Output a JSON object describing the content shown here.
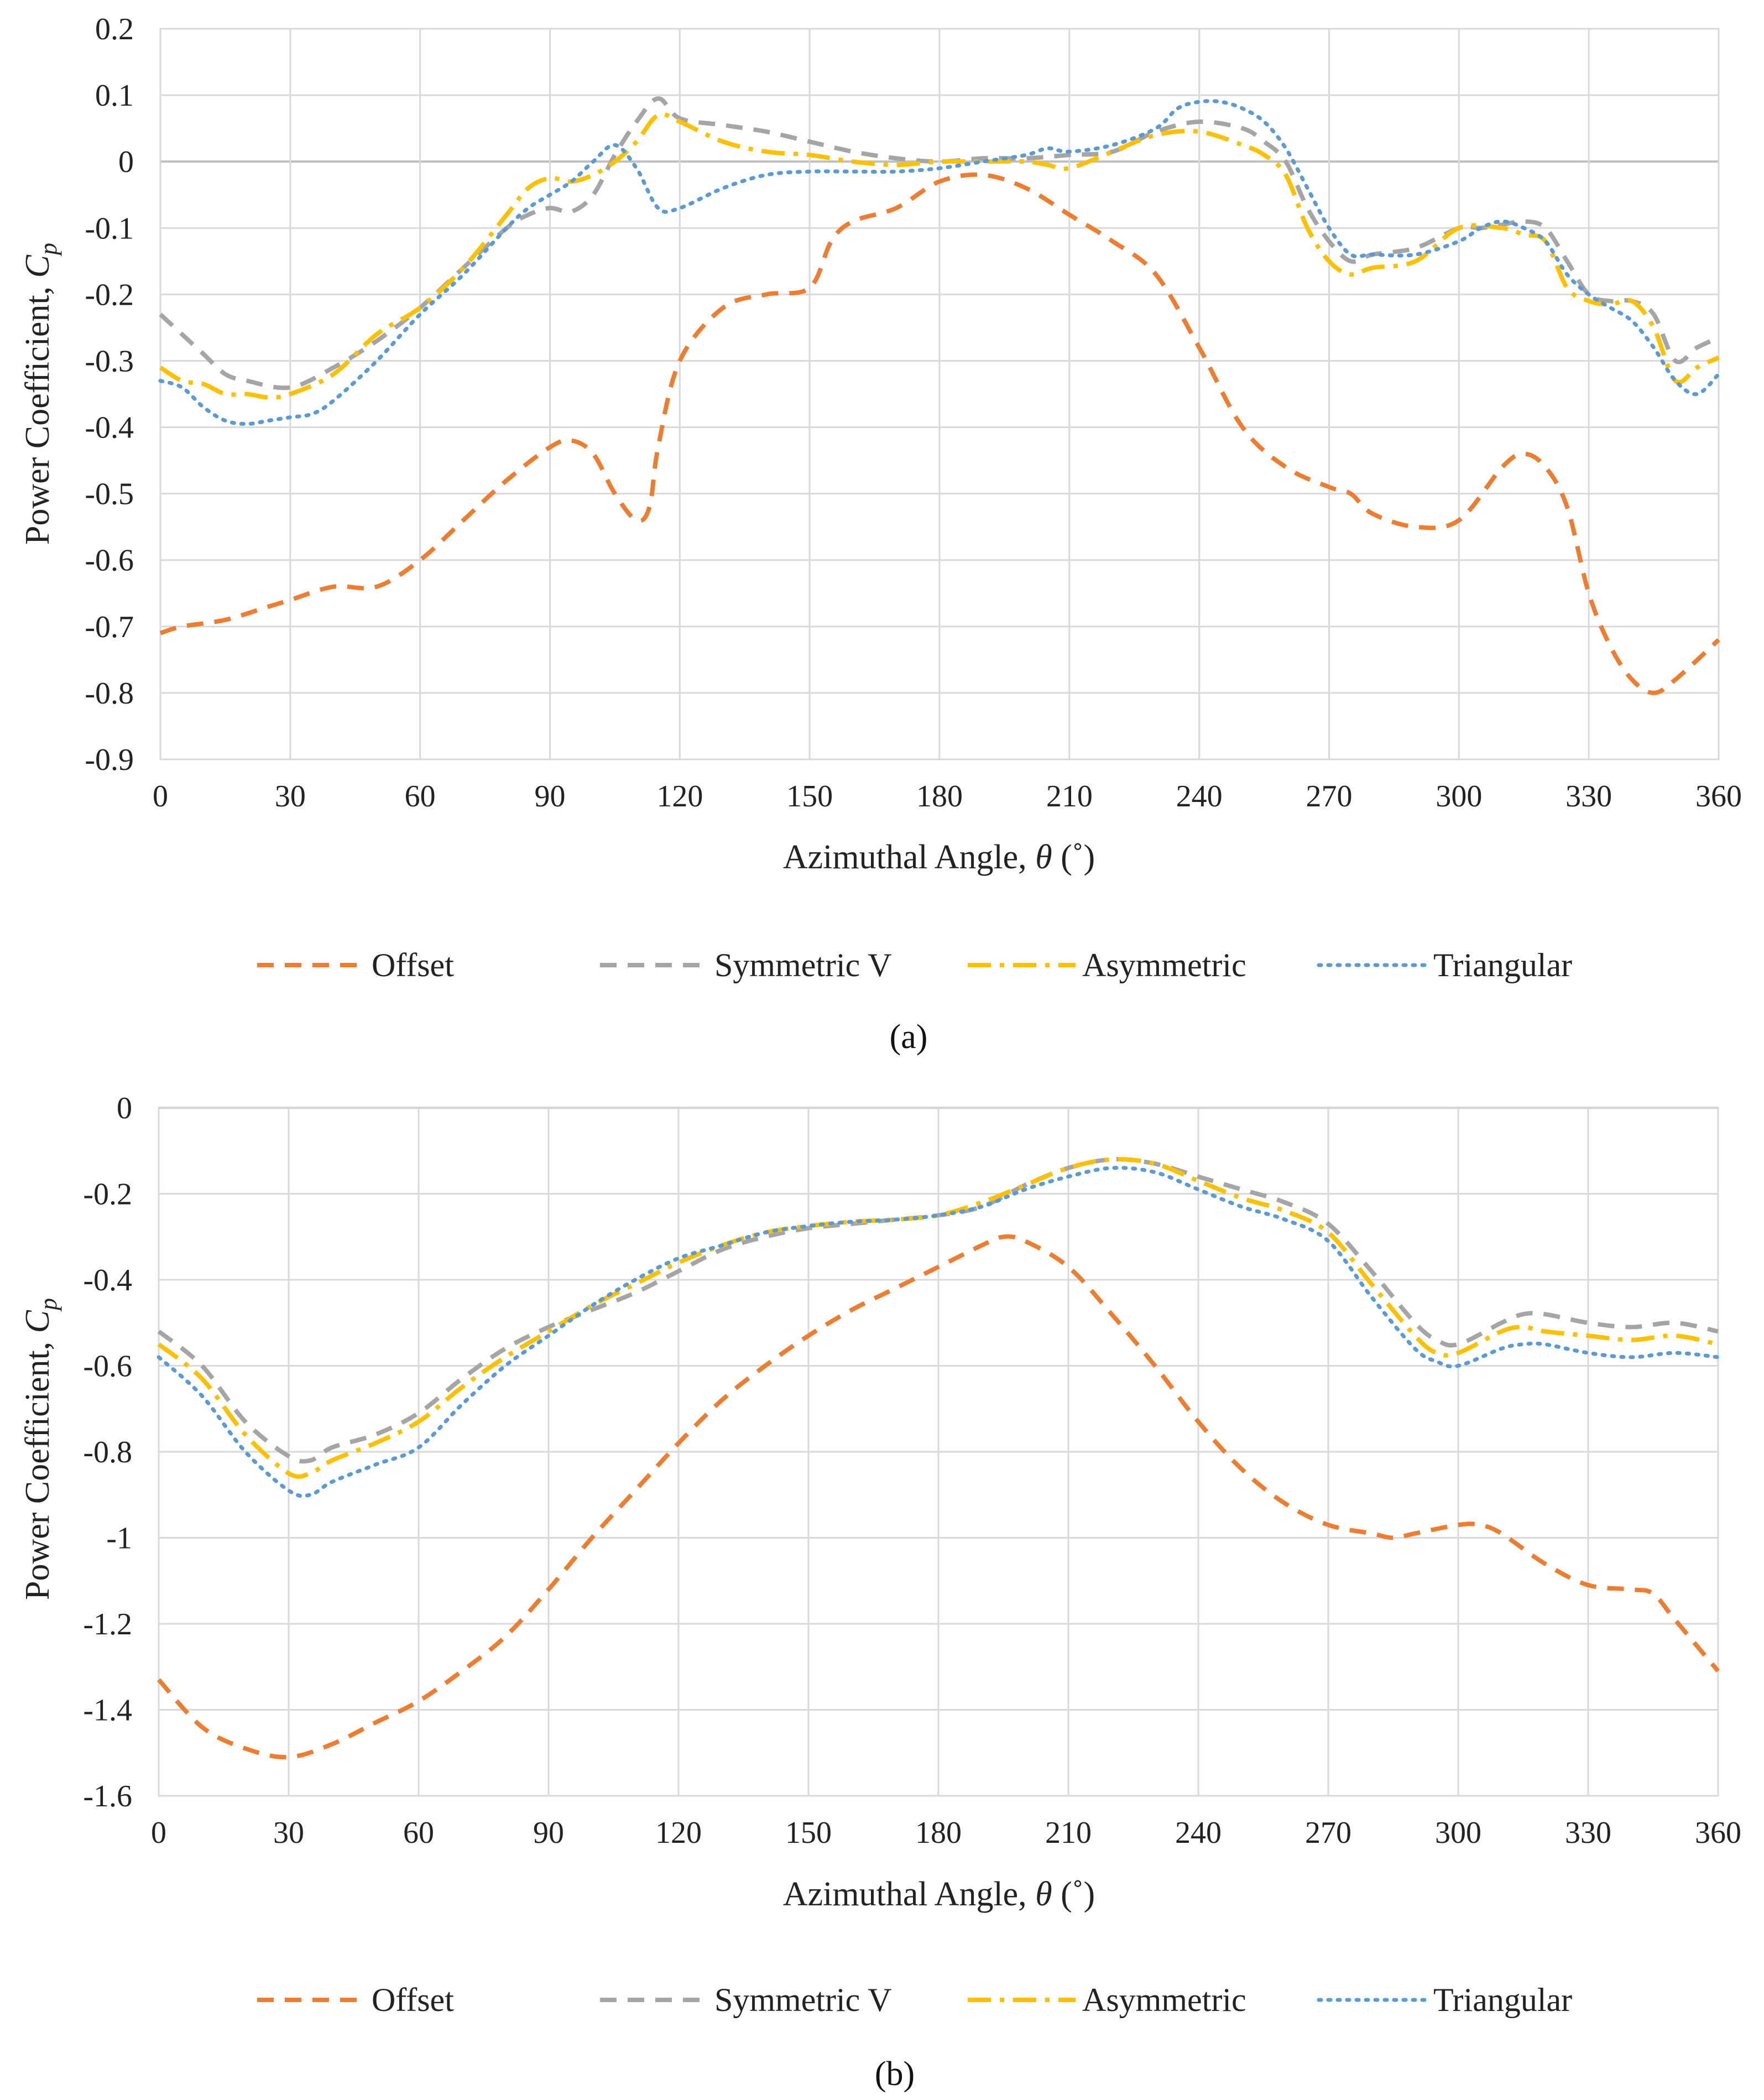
{
  "chart_data": [
    {
      "type": "line",
      "caption": "(a)",
      "xlabel_prefix": "Azimuthal Angle, ",
      "xlabel_symbol": "θ",
      "xlabel_suffix": " (˚)",
      "ylabel_prefix": "Power Coefficient, ",
      "ylabel_symbol": "C",
      "ylabel_sub": "p",
      "xlim": [
        0,
        360
      ],
      "ylim": [
        -0.9,
        0.2
      ],
      "xticks": [
        0,
        30,
        60,
        90,
        120,
        150,
        180,
        210,
        240,
        270,
        300,
        330,
        360
      ],
      "yticks": [
        0.2,
        0.1,
        0,
        -0.1,
        -0.2,
        -0.3,
        -0.4,
        -0.5,
        -0.6,
        -0.7,
        -0.8,
        -0.9
      ],
      "xtick_labels": [
        "0",
        "30",
        "60",
        "90",
        "120",
        "150",
        "180",
        "210",
        "240",
        "270",
        "300",
        "330",
        "360"
      ],
      "ytick_labels": [
        "0.2",
        "0.1",
        "0",
        "-0.1",
        "-0.2",
        "-0.3",
        "-0.4",
        "-0.5",
        "-0.6",
        "-0.7",
        "-0.8",
        "-0.9"
      ],
      "grid": true,
      "legend_position": "bottom",
      "series": [
        {
          "name": "Offset",
          "color": "#ED7D31",
          "style": "dash",
          "x": [
            0,
            5,
            15,
            25,
            30,
            40,
            50,
            60,
            70,
            80,
            90,
            95,
            100,
            105,
            110,
            113,
            115,
            120,
            130,
            140,
            150,
            155,
            160,
            170,
            180,
            190,
            200,
            210,
            220,
            230,
            240,
            250,
            260,
            270,
            275,
            280,
            290,
            300,
            310,
            315,
            320,
            325,
            330,
            335,
            340,
            345,
            350,
            360
          ],
          "y": [
            -0.71,
            -0.7,
            -0.69,
            -0.67,
            -0.66,
            -0.64,
            -0.64,
            -0.6,
            -0.54,
            -0.48,
            -0.43,
            -0.42,
            -0.44,
            -0.5,
            -0.54,
            -0.52,
            -0.43,
            -0.3,
            -0.22,
            -0.2,
            -0.19,
            -0.12,
            -0.09,
            -0.07,
            -0.03,
            -0.02,
            -0.04,
            -0.08,
            -0.12,
            -0.17,
            -0.28,
            -0.4,
            -0.46,
            -0.49,
            -0.5,
            -0.53,
            -0.55,
            -0.54,
            -0.46,
            -0.44,
            -0.46,
            -0.52,
            -0.65,
            -0.73,
            -0.78,
            -0.8,
            -0.78,
            -0.72
          ]
        },
        {
          "name": "Symmetric V",
          "color": "#A5A5A5",
          "style": "dash",
          "x": [
            0,
            5,
            10,
            15,
            20,
            30,
            40,
            50,
            60,
            70,
            80,
            85,
            90,
            95,
            100,
            105,
            110,
            115,
            120,
            130,
            140,
            150,
            160,
            170,
            180,
            190,
            200,
            210,
            220,
            230,
            240,
            250,
            255,
            260,
            265,
            270,
            275,
            280,
            290,
            300,
            305,
            310,
            315,
            320,
            325,
            330,
            335,
            340,
            345,
            350,
            355,
            360
          ],
          "y": [
            -0.23,
            -0.26,
            -0.29,
            -0.32,
            -0.33,
            -0.34,
            -0.31,
            -0.27,
            -0.22,
            -0.16,
            -0.1,
            -0.08,
            -0.07,
            -0.075,
            -0.05,
            0.01,
            0.06,
            0.095,
            0.065,
            0.055,
            0.045,
            0.03,
            0.015,
            0.005,
            0.0,
            0.005,
            0.005,
            0.01,
            0.015,
            0.045,
            0.06,
            0.05,
            0.03,
            0.0,
            -0.07,
            -0.12,
            -0.15,
            -0.14,
            -0.13,
            -0.1,
            -0.1,
            -0.095,
            -0.09,
            -0.1,
            -0.15,
            -0.2,
            -0.21,
            -0.21,
            -0.23,
            -0.3,
            -0.28,
            -0.265
          ]
        },
        {
          "name": "Asymmetric",
          "color": "#FFC000",
          "style": "dashdot",
          "x": [
            0,
            5,
            10,
            15,
            20,
            25,
            30,
            40,
            50,
            60,
            70,
            80,
            85,
            90,
            95,
            100,
            105,
            110,
            115,
            120,
            130,
            140,
            150,
            160,
            170,
            180,
            190,
            200,
            205,
            210,
            220,
            230,
            240,
            250,
            255,
            260,
            265,
            270,
            275,
            280,
            290,
            300,
            310,
            315,
            320,
            325,
            330,
            335,
            340,
            345,
            350,
            355,
            360
          ],
          "y": [
            -0.31,
            -0.33,
            -0.335,
            -0.35,
            -0.35,
            -0.355,
            -0.35,
            -0.32,
            -0.26,
            -0.22,
            -0.16,
            -0.08,
            -0.04,
            -0.025,
            -0.03,
            -0.02,
            0.0,
            0.03,
            0.07,
            0.06,
            0.03,
            0.015,
            0.01,
            0.0,
            -0.005,
            0.0,
            0.0,
            0.0,
            -0.005,
            -0.01,
            0.015,
            0.04,
            0.045,
            0.025,
            0.01,
            -0.02,
            -0.1,
            -0.15,
            -0.17,
            -0.16,
            -0.15,
            -0.1,
            -0.1,
            -0.11,
            -0.12,
            -0.19,
            -0.21,
            -0.215,
            -0.21,
            -0.25,
            -0.33,
            -0.31,
            -0.295
          ]
        },
        {
          "name": "Triangular",
          "color": "#5B9BD5",
          "style": "dot",
          "x": [
            0,
            5,
            10,
            15,
            20,
            25,
            30,
            35,
            40,
            50,
            60,
            70,
            80,
            85,
            90,
            95,
            100,
            105,
            110,
            115,
            120,
            130,
            140,
            150,
            160,
            170,
            180,
            190,
            200,
            205,
            210,
            220,
            230,
            235,
            240,
            245,
            250,
            255,
            260,
            265,
            270,
            275,
            280,
            290,
            300,
            305,
            310,
            315,
            320,
            325,
            330,
            335,
            340,
            345,
            350,
            355,
            360
          ],
          "y": [
            -0.33,
            -0.34,
            -0.37,
            -0.39,
            -0.395,
            -0.39,
            -0.385,
            -0.38,
            -0.36,
            -0.3,
            -0.23,
            -0.17,
            -0.1,
            -0.07,
            -0.05,
            -0.03,
            0.0,
            0.025,
            -0.01,
            -0.07,
            -0.07,
            -0.04,
            -0.02,
            -0.015,
            -0.015,
            -0.015,
            -0.01,
            0.0,
            0.01,
            0.02,
            0.015,
            0.025,
            0.05,
            0.08,
            0.09,
            0.09,
            0.08,
            0.06,
            0.02,
            -0.04,
            -0.1,
            -0.14,
            -0.14,
            -0.14,
            -0.12,
            -0.1,
            -0.09,
            -0.1,
            -0.12,
            -0.17,
            -0.2,
            -0.22,
            -0.24,
            -0.28,
            -0.33,
            -0.35,
            -0.32
          ]
        }
      ]
    },
    {
      "type": "line",
      "caption": "(b)",
      "xlabel_prefix": "Azimuthal Angle, ",
      "xlabel_symbol": "θ",
      "xlabel_suffix": " (˚)",
      "ylabel_prefix": "Power Coefficient, ",
      "ylabel_symbol": "C",
      "ylabel_sub": "p",
      "xlim": [
        0,
        360
      ],
      "ylim": [
        -1.6,
        0
      ],
      "xticks": [
        0,
        30,
        60,
        90,
        120,
        150,
        180,
        210,
        240,
        270,
        300,
        330,
        360
      ],
      "yticks": [
        0,
        -0.2,
        -0.4,
        -0.6,
        -0.8,
        -1.0,
        -1.2,
        -1.4,
        -1.6
      ],
      "xtick_labels": [
        "0",
        "30",
        "60",
        "90",
        "120",
        "150",
        "180",
        "210",
        "240",
        "270",
        "300",
        "330",
        "360"
      ],
      "ytick_labels": [
        "0",
        "-0.2",
        "-0.4",
        "-0.6",
        "-0.8",
        "-1",
        "-1.2",
        "-1.4",
        "-1.6"
      ],
      "grid": true,
      "legend_position": "bottom",
      "series": [
        {
          "name": "Offset",
          "color": "#ED7D31",
          "style": "dash",
          "x": [
            0,
            10,
            20,
            30,
            40,
            50,
            60,
            70,
            80,
            90,
            100,
            110,
            120,
            130,
            140,
            150,
            160,
            170,
            180,
            190,
            195,
            200,
            210,
            220,
            230,
            240,
            250,
            260,
            270,
            280,
            285,
            290,
            300,
            305,
            310,
            320,
            330,
            340,
            345,
            350,
            360
          ],
          "y": [
            -1.33,
            -1.44,
            -1.49,
            -1.51,
            -1.48,
            -1.43,
            -1.38,
            -1.31,
            -1.23,
            -1.12,
            -1.0,
            -0.89,
            -0.78,
            -0.68,
            -0.6,
            -0.53,
            -0.47,
            -0.42,
            -0.37,
            -0.32,
            -0.3,
            -0.31,
            -0.37,
            -0.48,
            -0.6,
            -0.73,
            -0.84,
            -0.92,
            -0.97,
            -0.99,
            -1.0,
            -0.99,
            -0.97,
            -0.97,
            -0.99,
            -1.06,
            -1.11,
            -1.12,
            -1.13,
            -1.19,
            -1.31
          ]
        },
        {
          "name": "Symmetric V",
          "color": "#A5A5A5",
          "style": "dash",
          "x": [
            0,
            10,
            20,
            30,
            35,
            40,
            50,
            60,
            70,
            80,
            90,
            100,
            110,
            120,
            130,
            140,
            150,
            160,
            170,
            180,
            190,
            200,
            210,
            220,
            230,
            240,
            250,
            260,
            270,
            280,
            290,
            295,
            300,
            310,
            315,
            320,
            330,
            340,
            350,
            360
          ],
          "y": [
            -0.52,
            -0.6,
            -0.73,
            -0.81,
            -0.82,
            -0.79,
            -0.76,
            -0.71,
            -0.63,
            -0.56,
            -0.51,
            -0.47,
            -0.43,
            -0.38,
            -0.33,
            -0.3,
            -0.28,
            -0.27,
            -0.26,
            -0.25,
            -0.23,
            -0.18,
            -0.14,
            -0.12,
            -0.13,
            -0.16,
            -0.19,
            -0.22,
            -0.27,
            -0.38,
            -0.5,
            -0.54,
            -0.55,
            -0.5,
            -0.48,
            -0.48,
            -0.5,
            -0.51,
            -0.5,
            -0.52
          ]
        },
        {
          "name": "Asymmetric",
          "color": "#FFC000",
          "style": "dashdot",
          "x": [
            0,
            10,
            20,
            30,
            35,
            40,
            50,
            60,
            70,
            80,
            90,
            100,
            110,
            120,
            130,
            140,
            150,
            160,
            170,
            180,
            190,
            200,
            210,
            220,
            230,
            240,
            250,
            260,
            270,
            280,
            290,
            295,
            300,
            310,
            315,
            320,
            330,
            340,
            350,
            360
          ],
          "y": [
            -0.55,
            -0.63,
            -0.76,
            -0.85,
            -0.85,
            -0.82,
            -0.78,
            -0.73,
            -0.65,
            -0.58,
            -0.52,
            -0.46,
            -0.41,
            -0.36,
            -0.32,
            -0.29,
            -0.275,
            -0.265,
            -0.26,
            -0.25,
            -0.22,
            -0.18,
            -0.14,
            -0.12,
            -0.13,
            -0.17,
            -0.21,
            -0.24,
            -0.29,
            -0.41,
            -0.53,
            -0.57,
            -0.57,
            -0.52,
            -0.51,
            -0.52,
            -0.53,
            -0.54,
            -0.53,
            -0.55
          ]
        },
        {
          "name": "Triangular",
          "color": "#5B9BD5",
          "style": "dot",
          "x": [
            0,
            10,
            20,
            30,
            35,
            40,
            50,
            60,
            70,
            80,
            90,
            100,
            110,
            120,
            130,
            140,
            150,
            160,
            170,
            180,
            190,
            200,
            210,
            220,
            230,
            240,
            250,
            260,
            270,
            280,
            290,
            295,
            300,
            310,
            315,
            320,
            330,
            340,
            350,
            360
          ],
          "y": [
            -0.58,
            -0.67,
            -0.8,
            -0.89,
            -0.9,
            -0.87,
            -0.83,
            -0.79,
            -0.69,
            -0.6,
            -0.53,
            -0.46,
            -0.4,
            -0.35,
            -0.32,
            -0.29,
            -0.275,
            -0.265,
            -0.26,
            -0.25,
            -0.23,
            -0.19,
            -0.16,
            -0.14,
            -0.15,
            -0.19,
            -0.23,
            -0.26,
            -0.31,
            -0.44,
            -0.56,
            -0.59,
            -0.6,
            -0.56,
            -0.55,
            -0.55,
            -0.57,
            -0.58,
            -0.57,
            -0.58
          ]
        }
      ]
    }
  ]
}
